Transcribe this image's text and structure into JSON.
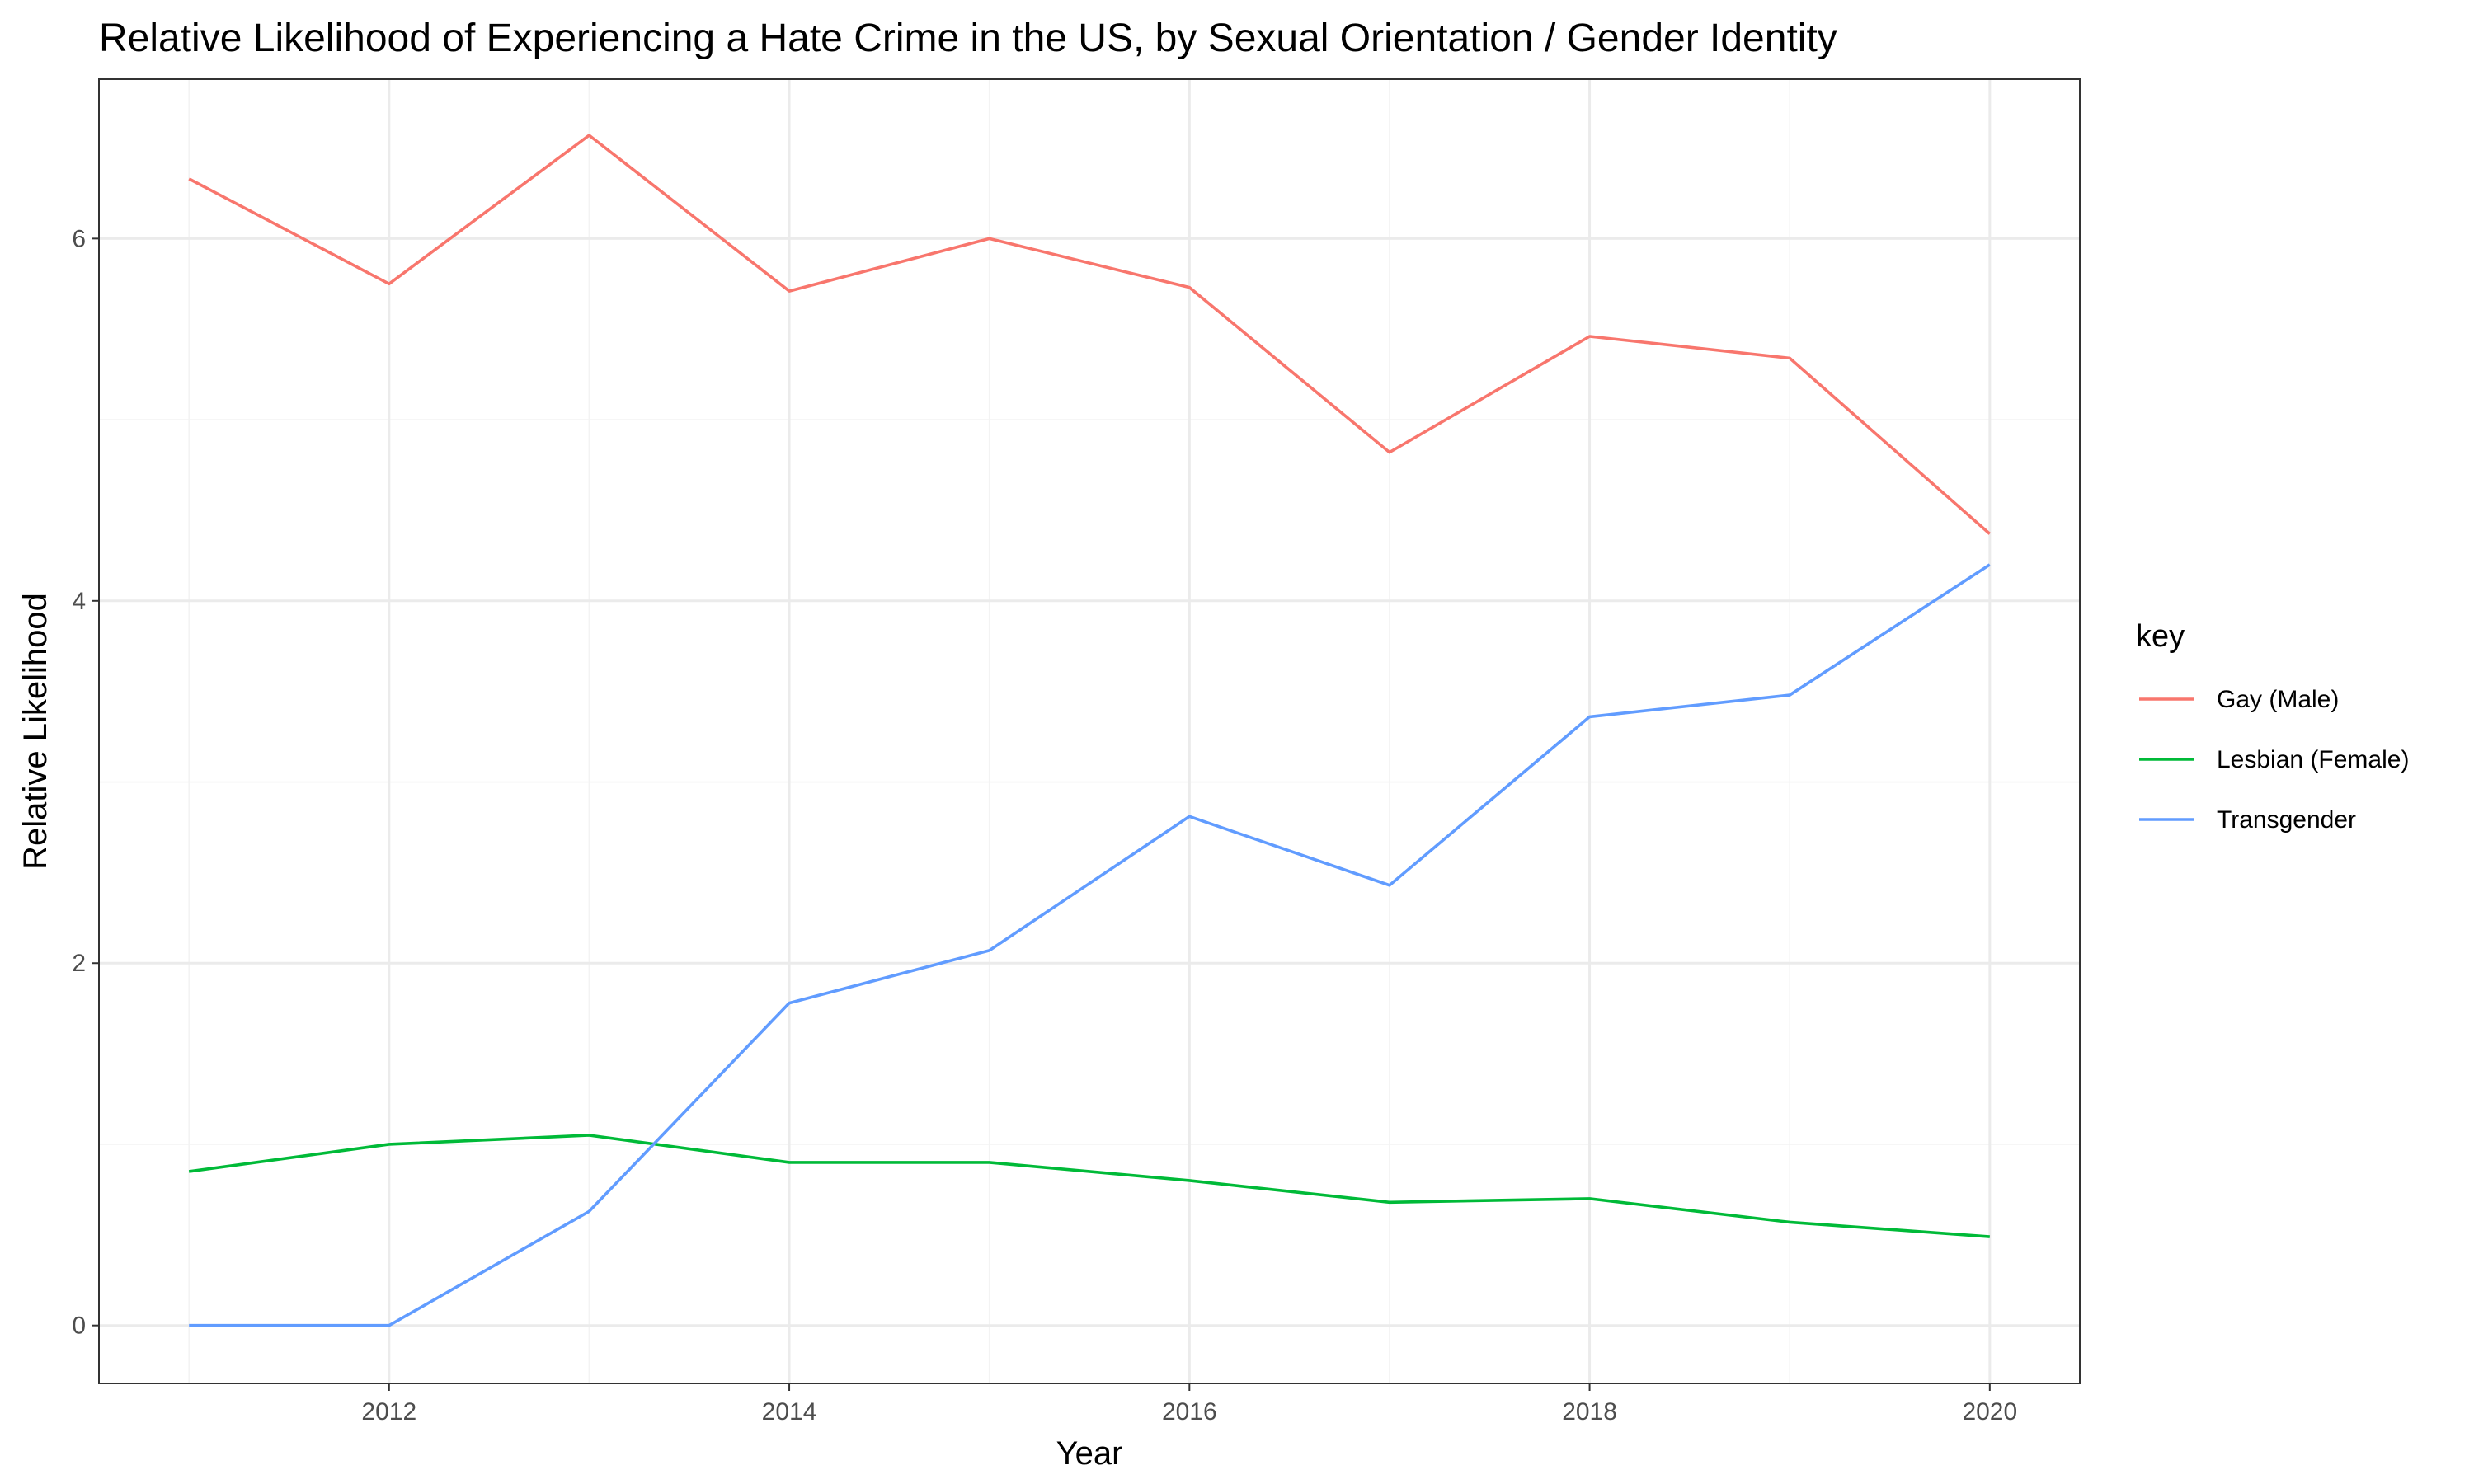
{
  "chart_data": {
    "type": "line",
    "title": "Relative Likelihood of Experiencing a Hate Crime in the US, by Sexual Orientation / Gender Identity",
    "xlabel": "Year",
    "ylabel": "Relative Likelihood",
    "x": [
      2011,
      2012,
      2013,
      2014,
      2015,
      2016,
      2017,
      2018,
      2019,
      2020
    ],
    "xlim": [
      2010.55,
      2020.45
    ],
    "ylim": [
      -0.32,
      6.88
    ],
    "x_ticks": [
      2012,
      2014,
      2016,
      2018,
      2020
    ],
    "y_ticks": [
      0,
      2,
      4,
      6
    ],
    "grid": true,
    "legend": {
      "title": "key",
      "position": "right"
    },
    "series": [
      {
        "name": "Gay (Male)",
        "color": "#F8766D",
        "values": [
          6.33,
          5.75,
          6.57,
          5.71,
          6.0,
          5.73,
          4.82,
          5.46,
          5.34,
          4.37
        ]
      },
      {
        "name": "Lesbian (Female)",
        "color": "#00BA38",
        "values": [
          0.85,
          1.0,
          1.05,
          0.9,
          0.9,
          0.8,
          0.68,
          0.7,
          0.57,
          0.49
        ]
      },
      {
        "name": "Transgender",
        "color": "#619CFF",
        "values": [
          0.0,
          0.0,
          0.63,
          1.78,
          2.07,
          2.81,
          2.43,
          3.36,
          3.48,
          4.2
        ]
      }
    ]
  }
}
